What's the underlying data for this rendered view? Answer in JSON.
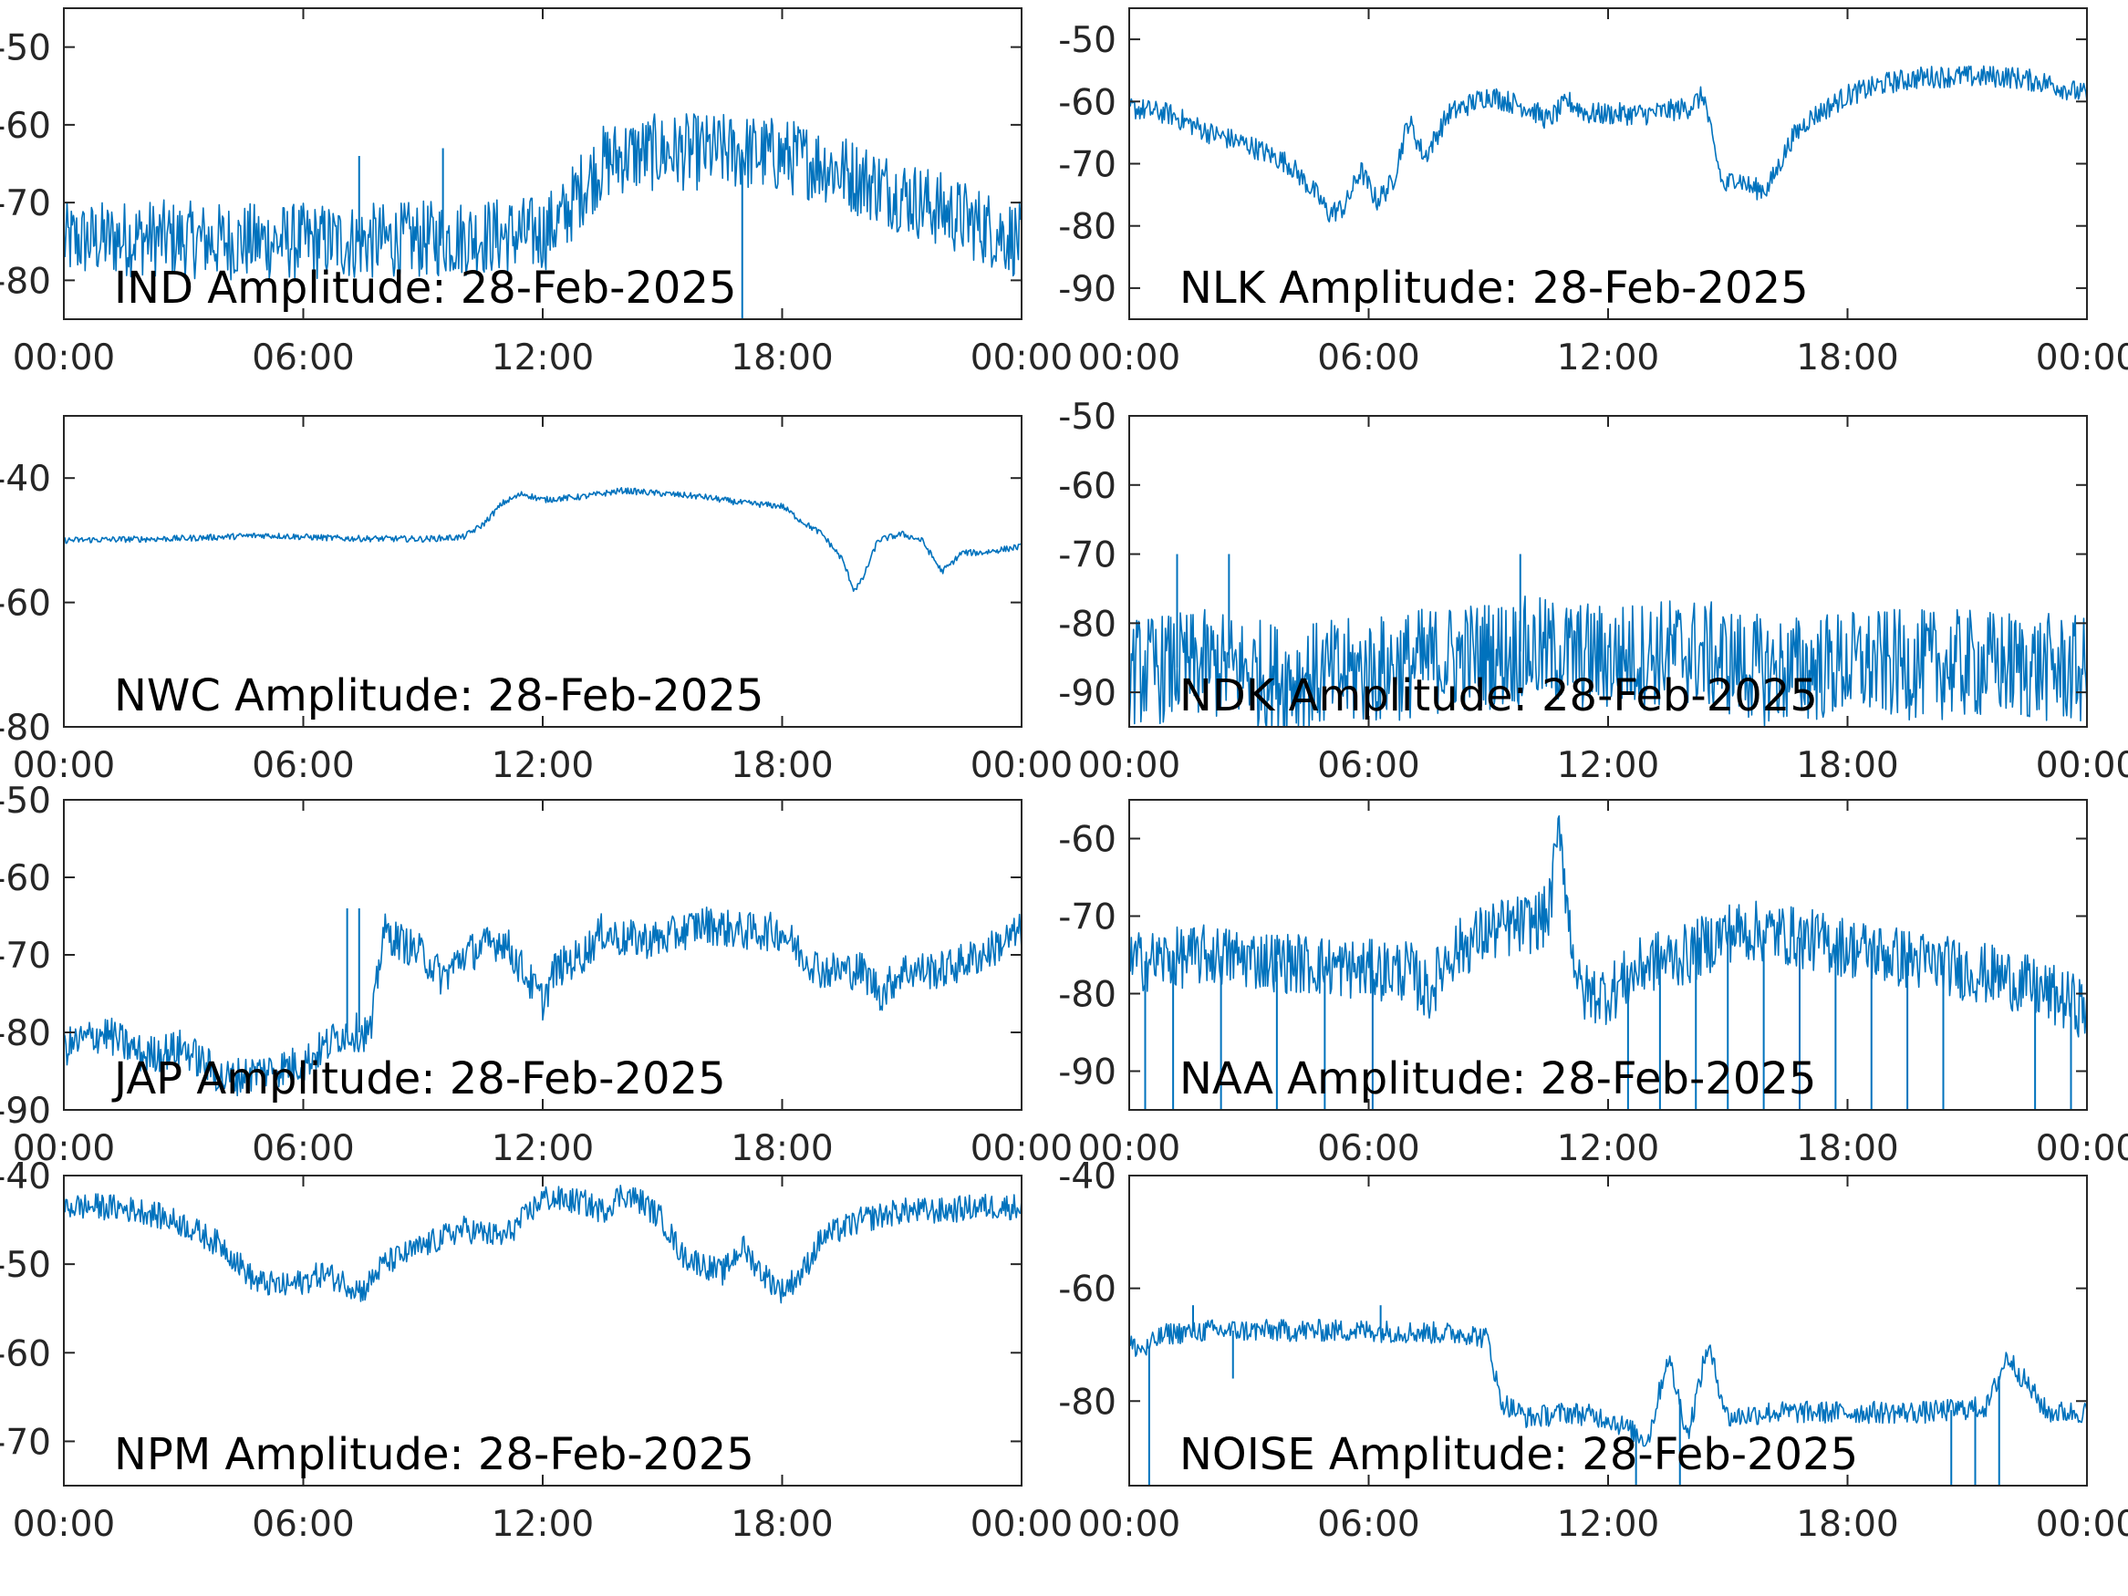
{
  "figure": {
    "line_color": "#0072BD",
    "frame_color": "#262626"
  },
  "chart_data": [
    {
      "type": "line",
      "title": "IND Amplitude: 28-Feb-2025",
      "xlabel": "",
      "ylabel": "",
      "x_ticks": [
        "00:00",
        "06:00",
        "12:00",
        "18:00",
        "00:00"
      ],
      "y_ticks": [
        "-50",
        "-60",
        "-70",
        "-80"
      ],
      "y_tick_values": [
        -50,
        -60,
        -70,
        -80
      ],
      "xlim": [
        0,
        24
      ],
      "ylim": [
        -85,
        -45
      ],
      "grid": false,
      "noise": 5,
      "series": [
        {
          "x": [
            0,
            2,
            4,
            6,
            8,
            10,
            12,
            12.5,
            13,
            13.5,
            14,
            15,
            16,
            17,
            18,
            19,
            20,
            21,
            22,
            23,
            24
          ],
          "y": [
            -75,
            -74.5,
            -75,
            -75,
            -75,
            -74.5,
            -74,
            -72,
            -68,
            -65,
            -64,
            -63.5,
            -63.5,
            -63.5,
            -64,
            -65,
            -67,
            -69,
            -71,
            -73,
            -75
          ]
        }
      ],
      "spikes": [
        {
          "x": 7.4,
          "y": -64
        },
        {
          "x": 9.5,
          "y": -63
        },
        {
          "x": 17,
          "y": -85
        }
      ]
    },
    {
      "type": "line",
      "title": "NLK Amplitude: 28-Feb-2025",
      "xlabel": "",
      "ylabel": "",
      "x_ticks": [
        "00:00",
        "06:00",
        "12:00",
        "18:00",
        "00:00"
      ],
      "y_ticks": [
        "-50",
        "-60",
        "-70",
        "-80",
        "-90"
      ],
      "y_tick_values": [
        -50,
        -60,
        -70,
        -80,
        -90
      ],
      "xlim": [
        0,
        24
      ],
      "ylim": [
        -95,
        -45
      ],
      "grid": false,
      "noise": 1.8,
      "series": [
        {
          "x": [
            0,
            1,
            2,
            3,
            4,
            4.7,
            5,
            5.4,
            5.8,
            6.2,
            6.6,
            7,
            7.4,
            8,
            9,
            10,
            10.5,
            11,
            11.5,
            12,
            13,
            14,
            14.4,
            14.6,
            14.9,
            15.2,
            15.6,
            16,
            16.3,
            16.6,
            17,
            17.5,
            18,
            19,
            20,
            21,
            22,
            23,
            24
          ],
          "y": [
            -61,
            -62,
            -65,
            -67,
            -70,
            -75,
            -78,
            -77,
            -71,
            -76,
            -73,
            -63,
            -69,
            -62,
            -59,
            -61,
            -63,
            -60,
            -62,
            -62,
            -62,
            -61,
            -59,
            -66,
            -74,
            -72,
            -74,
            -74,
            -70,
            -66,
            -63,
            -61,
            -59,
            -57,
            -56,
            -56,
            -56,
            -57,
            -59
          ]
        }
      ],
      "spikes": []
    },
    {
      "type": "line",
      "title": "NWC Amplitude: 28-Feb-2025",
      "xlabel": "",
      "ylabel": "",
      "x_ticks": [
        "00:00",
        "06:00",
        "12:00",
        "18:00",
        "00:00"
      ],
      "y_ticks": [
        "-40",
        "-60",
        "-80"
      ],
      "y_tick_values": [
        -40,
        -60,
        -80
      ],
      "xlim": [
        0,
        24
      ],
      "ylim": [
        -80,
        -30
      ],
      "grid": false,
      "noise": 0.5,
      "series": [
        {
          "x": [
            0,
            3,
            5,
            7,
            9,
            10,
            10.5,
            11,
            11.5,
            12,
            13,
            14,
            15,
            16,
            17,
            18,
            18.5,
            19,
            19.5,
            19.8,
            20,
            20.4,
            21,
            21.5,
            22,
            22.2,
            22.5,
            23,
            24
          ],
          "y": [
            -50,
            -49.7,
            -49.2,
            -49.7,
            -49.8,
            -49.5,
            -47.5,
            -44,
            -42.5,
            -43.5,
            -43,
            -42,
            -42.5,
            -43,
            -44,
            -44.5,
            -47,
            -49,
            -53,
            -58,
            -56.5,
            -50,
            -49,
            -50,
            -55,
            -54,
            -52,
            -52,
            -51
          ]
        }
      ],
      "spikes": []
    },
    {
      "type": "line",
      "title": "NDK Amplitude: 28-Feb-2025",
      "xlabel": "",
      "ylabel": "",
      "x_ticks": [
        "00:00",
        "06:00",
        "12:00",
        "18:00",
        "00:00"
      ],
      "y_ticks": [
        "-50",
        "-60",
        "-70",
        "-80",
        "-90"
      ],
      "y_tick_values": [
        -50,
        -60,
        -70,
        -80,
        -90
      ],
      "xlim": [
        0,
        24
      ],
      "ylim": [
        -95,
        -50
      ],
      "grid": false,
      "noise": 8,
      "series": [
        {
          "x": [
            0,
            2,
            4,
            6,
            8,
            10,
            12,
            14,
            16,
            18,
            20,
            22,
            24
          ],
          "y": [
            -87,
            -86,
            -88,
            -87,
            -85,
            -84,
            -85,
            -84,
            -87,
            -86,
            -86,
            -86,
            -87
          ]
        }
      ],
      "spikes": [
        {
          "x": 1.2,
          "y": -70
        },
        {
          "x": 2.5,
          "y": -70
        },
        {
          "x": 9.8,
          "y": -70
        }
      ]
    },
    {
      "type": "line",
      "title": "JAP Amplitude: 28-Feb-2025",
      "xlabel": "",
      "ylabel": "",
      "x_ticks": [
        "00:00",
        "06:00",
        "12:00",
        "18:00",
        "00:00"
      ],
      "y_ticks": [
        "-50",
        "-60",
        "-70",
        "-80",
        "-90"
      ],
      "y_tick_values": [
        -50,
        -60,
        -70,
        -80,
        -90
      ],
      "xlim": [
        0,
        24
      ],
      "ylim": [
        -90,
        -50
      ],
      "grid": false,
      "noise": 2.5,
      "series": [
        {
          "x": [
            0,
            1,
            2,
            3,
            4,
            5,
            6,
            7,
            7.7,
            8,
            9,
            9.5,
            10,
            11,
            11.5,
            12,
            12.3,
            13,
            13.5,
            14,
            15,
            16,
            17,
            18,
            18.5,
            19,
            20,
            20.5,
            21,
            22,
            23,
            24
          ],
          "y": [
            -82,
            -80,
            -83,
            -82,
            -86,
            -85,
            -84,
            -80,
            -80,
            -67,
            -70,
            -73,
            -70,
            -68,
            -72,
            -76,
            -72,
            -70,
            -67,
            -68,
            -68,
            -66,
            -67,
            -67,
            -70,
            -72,
            -72,
            -75,
            -72,
            -72,
            -70,
            -67
          ]
        }
      ],
      "spikes": [
        {
          "x": 7.1,
          "y": -64
        },
        {
          "x": 7.4,
          "y": -64
        }
      ]
    },
    {
      "type": "line",
      "title": "NAA Amplitude: 28-Feb-2025",
      "xlabel": "",
      "ylabel": "",
      "x_ticks": [
        "00:00",
        "06:00",
        "12:00",
        "18:00",
        "00:00"
      ],
      "y_ticks": [
        "-60",
        "-70",
        "-80",
        "-90"
      ],
      "y_tick_values": [
        -60,
        -70,
        -80,
        -90
      ],
      "xlim": [
        0,
        24
      ],
      "ylim": [
        -95,
        -55
      ],
      "grid": false,
      "noise": 4,
      "series": [
        {
          "x": [
            0,
            2,
            4,
            6,
            7,
            7.5,
            8,
            9,
            10,
            10.5,
            10.8,
            11,
            11.3,
            12,
            13,
            14,
            15,
            16,
            17,
            18,
            19,
            20,
            21,
            22,
            23,
            24
          ],
          "y": [
            -76,
            -75,
            -76,
            -77,
            -77,
            -80,
            -75,
            -72,
            -71,
            -70,
            -58,
            -70,
            -80,
            -80,
            -76,
            -75,
            -72,
            -72,
            -73,
            -74,
            -75,
            -76,
            -77,
            -78,
            -80,
            -82
          ]
        }
      ],
      "spikes": [
        {
          "x": 0.4,
          "y": -95
        },
        {
          "x": 1.1,
          "y": -95
        },
        {
          "x": 2.3,
          "y": -95
        },
        {
          "x": 3.7,
          "y": -95
        },
        {
          "x": 4.9,
          "y": -95
        },
        {
          "x": 6.1,
          "y": -95
        },
        {
          "x": 12.5,
          "y": -95
        },
        {
          "x": 13.3,
          "y": -95
        },
        {
          "x": 14.2,
          "y": -95
        },
        {
          "x": 15,
          "y": -95
        },
        {
          "x": 15.9,
          "y": -95
        },
        {
          "x": 16.8,
          "y": -95
        },
        {
          "x": 17.7,
          "y": -95
        },
        {
          "x": 18.6,
          "y": -95
        },
        {
          "x": 19.5,
          "y": -95
        },
        {
          "x": 20.4,
          "y": -95
        },
        {
          "x": 22.7,
          "y": -95
        },
        {
          "x": 23.6,
          "y": -95
        }
      ]
    },
    {
      "type": "line",
      "title": "NPM Amplitude: 28-Feb-2025",
      "xlabel": "",
      "ylabel": "",
      "x_ticks": [
        "00:00",
        "06:00",
        "12:00",
        "18:00",
        "00:00"
      ],
      "y_ticks": [
        "-40",
        "-50",
        "-60",
        "-70"
      ],
      "y_tick_values": [
        -40,
        -50,
        -60,
        -70
      ],
      "xlim": [
        0,
        24
      ],
      "ylim": [
        -75,
        -40
      ],
      "grid": false,
      "noise": 1.5,
      "series": [
        {
          "x": [
            0,
            1,
            2,
            3,
            4,
            4.8,
            5.5,
            6,
            6.5,
            7,
            7.5,
            8,
            9,
            10,
            11,
            11.5,
            12,
            13,
            13.5,
            14,
            14.5,
            15,
            15.5,
            16,
            16.5,
            17,
            17.5,
            18,
            18.5,
            19,
            20,
            21,
            22,
            23,
            24
          ],
          "y": [
            -43.5,
            -43.5,
            -44,
            -45.5,
            -48,
            -52,
            -52.5,
            -52,
            -51,
            -52,
            -53,
            -50,
            -48,
            -46,
            -47,
            -45,
            -42.5,
            -43,
            -44,
            -42,
            -43,
            -45,
            -49,
            -50,
            -51,
            -48,
            -51,
            -53,
            -51,
            -47,
            -45,
            -44,
            -44,
            -43.5,
            -43.5
          ]
        }
      ],
      "spikes": []
    },
    {
      "type": "line",
      "title": "NOISE Amplitude: 28-Feb-2025",
      "xlabel": "",
      "ylabel": "",
      "x_ticks": [
        "00:00",
        "06:00",
        "12:00",
        "18:00",
        "00:00"
      ],
      "y_ticks": [
        "-40",
        "-60",
        "-80"
      ],
      "y_tick_values": [
        -40,
        -60,
        -80
      ],
      "xlim": [
        0,
        24
      ],
      "ylim": [
        -95,
        -40
      ],
      "grid": false,
      "noise": 2,
      "series": [
        {
          "x": [
            0,
            0.4,
            0.7,
            1,
            2,
            4,
            6,
            8,
            8.5,
            9,
            9.3,
            10,
            11,
            12,
            13,
            13.5,
            14,
            14.5,
            15,
            16,
            18,
            20,
            21.5,
            22,
            23,
            24
          ],
          "y": [
            -70,
            -71,
            -69,
            -68,
            -67.5,
            -67.5,
            -67.5,
            -68,
            -68,
            -69,
            -80,
            -83,
            -82,
            -83,
            -87,
            -72,
            -86,
            -70,
            -83,
            -82,
            -82,
            -82,
            -81,
            -72,
            -82,
            -82
          ]
        }
      ],
      "spikes": [
        {
          "x": 0.5,
          "y": -95
        },
        {
          "x": 1.6,
          "y": -63
        },
        {
          "x": 2.6,
          "y": -76
        },
        {
          "x": 6.3,
          "y": -63
        },
        {
          "x": 12.7,
          "y": -95
        },
        {
          "x": 13.8,
          "y": -95
        },
        {
          "x": 20.6,
          "y": -95
        },
        {
          "x": 21.2,
          "y": -95
        },
        {
          "x": 21.8,
          "y": -95
        }
      ]
    }
  ]
}
